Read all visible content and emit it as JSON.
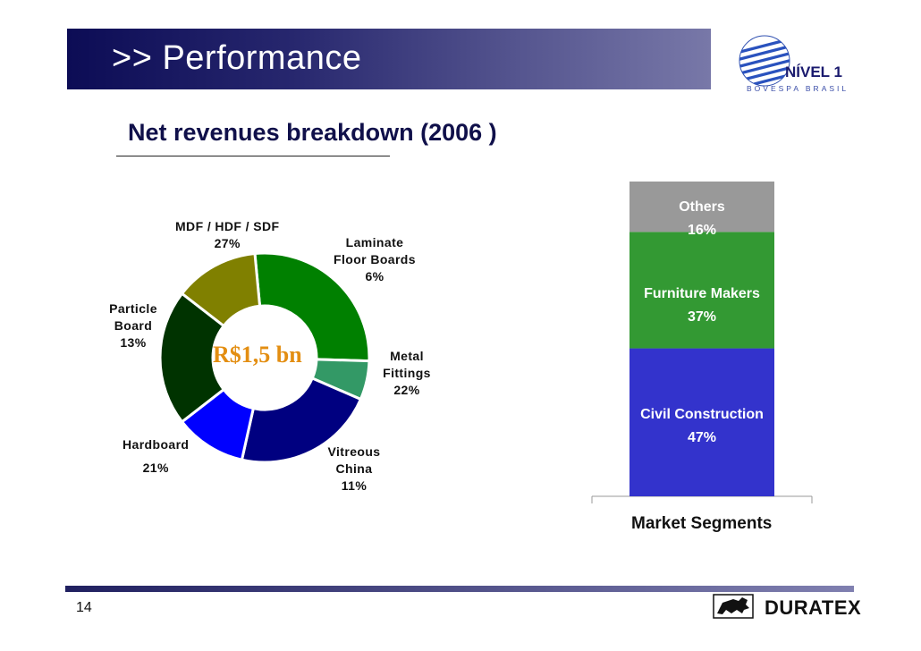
{
  "header": {
    "title": ">> Performance"
  },
  "subtitle": "Net revenues breakdown (2006 )",
  "logo": {
    "nivel": "NÍVEL 1",
    "bovespa": "BOVESPA BRASIL"
  },
  "page_number": "14",
  "brand": "DURATEX",
  "chart_data": [
    {
      "type": "pie",
      "subtype": "donut",
      "center_label": "R$1,5 bn",
      "slices": [
        {
          "name": "MDF / HDF / SDF",
          "value": 27,
          "label": "27%",
          "color": "#008000"
        },
        {
          "name": "Laminate Floor Boards",
          "value": 6,
          "label": "6%",
          "color": "#339966"
        },
        {
          "name": "Metal Fittings",
          "value": 22,
          "label": "22%",
          "color": "#000080"
        },
        {
          "name": "Vitreous China",
          "value": 11,
          "label": "11%",
          "color": "#0000ff"
        },
        {
          "name": "Hardboard",
          "value": 21,
          "label": "21%",
          "color": "#003300"
        },
        {
          "name": "Particle Board",
          "value": 13,
          "label": "13%",
          "color": "#808000"
        }
      ]
    },
    {
      "type": "bar",
      "subtype": "stacked",
      "xlabel": "Market Segments",
      "ylim": [
        0,
        100
      ],
      "series": [
        {
          "name": "Civil Construction",
          "value": 47,
          "label": "47%",
          "color": "#3333cc"
        },
        {
          "name": "Furniture Makers",
          "value": 37,
          "label": "37%",
          "color": "#339933"
        },
        {
          "name": "Others",
          "value": 16,
          "label": "16%",
          "color": "#999999"
        }
      ]
    }
  ]
}
